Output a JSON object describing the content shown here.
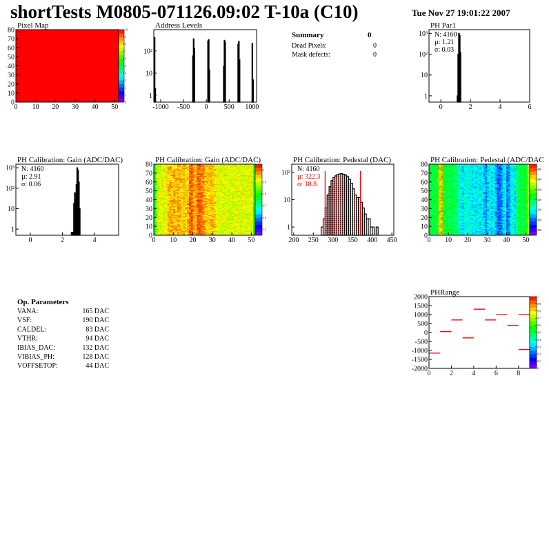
{
  "header": {
    "title": "shortTests M0805-071126.09:02 T-10a (C10)",
    "date": "Tue Nov 27 19:01:22 2007"
  },
  "summary": {
    "title": "Summary",
    "value": "0",
    "rows": [
      {
        "label": "Dead Pixels:",
        "value": "0"
      },
      {
        "label": "Mask defects:",
        "value": "0"
      }
    ]
  },
  "op_parameters": {
    "title": "Op. Parameters",
    "rows": [
      {
        "label": "VANA:",
        "value": "165 DAC"
      },
      {
        "label": "VSF:",
        "value": "190 DAC"
      },
      {
        "label": "CALDEL:",
        "value": "83 DAC"
      },
      {
        "label": "VTHR:",
        "value": "94 DAC"
      },
      {
        "label": "IBIAS_DAC:",
        "value": "132 DAC"
      },
      {
        "label": "VIBIAS_PH:",
        "value": "128 DAC"
      },
      {
        "label": "VOFFSETOP:",
        "value": "44 DAC"
      }
    ]
  },
  "colors": {
    "hist_line": "#000000",
    "fit_line": "#ff0000",
    "stat_red": "#ff0000"
  },
  "chart_data": [
    {
      "id": "pixelmap",
      "type": "heatmap",
      "title": "Pixel Map",
      "xlim": [
        0,
        52
      ],
      "ylim": [
        0,
        80
      ],
      "zlim": [
        0,
        10
      ],
      "xticks": [
        0,
        10,
        20,
        30,
        40,
        50
      ],
      "yticks": [
        0,
        10,
        20,
        30,
        40,
        50,
        60,
        70,
        80
      ],
      "zticks": [
        0,
        1,
        2,
        3,
        4,
        5,
        6,
        7,
        8,
        9,
        10
      ],
      "uniform_value": 10
    },
    {
      "id": "address",
      "type": "bar",
      "title": "Address Levels",
      "log_y": true,
      "xlim": [
        -1150,
        1100
      ],
      "ylim": [
        0.5,
        900
      ],
      "xticks": [
        -1000,
        -500,
        0,
        500,
        1000
      ],
      "yticks": [
        {
          "v": 1,
          "l": "1"
        },
        {
          "v": 10,
          "l": "10"
        },
        {
          "v": 100,
          "l": "10²"
        }
      ],
      "bin_width": 15,
      "bins": [
        [
          -1140,
          400
        ],
        [
          -1125,
          2
        ],
        [
          -300,
          60
        ],
        [
          -285,
          350
        ],
        [
          -270,
          130
        ],
        [
          30,
          280
        ],
        [
          45,
          320
        ],
        [
          60,
          14
        ],
        [
          375,
          20
        ],
        [
          390,
          300
        ],
        [
          405,
          250
        ],
        [
          690,
          200
        ],
        [
          705,
          270
        ],
        [
          720,
          40
        ],
        [
          1000,
          220
        ],
        [
          1015,
          5
        ]
      ]
    },
    {
      "id": "phpar1",
      "type": "bar",
      "title": "PH Par1",
      "log_y": true,
      "xlim": [
        -0.8,
        6
      ],
      "ylim": [
        0.5,
        1500
      ],
      "xticks": [
        0,
        2,
        4,
        6
      ],
      "yticks": [
        {
          "v": 1,
          "l": "1"
        },
        {
          "v": 10,
          "l": "10"
        },
        {
          "v": 100,
          "l": "10²"
        },
        {
          "v": 1000,
          "l": "10³"
        }
      ],
      "bin_width": 0.05,
      "bins": [
        [
          1.1,
          1
        ],
        [
          1.15,
          100
        ],
        [
          1.2,
          1000
        ],
        [
          1.25,
          800
        ],
        [
          1.3,
          120
        ]
      ],
      "stats": {
        "n": "N: 4160",
        "mean": "µ: 1.21",
        "sigma": "σ: 0.03"
      }
    },
    {
      "id": "gainhist",
      "type": "bar",
      "title": "PH Calibration: Gain (ADC/DAC)",
      "log_y": true,
      "xlim": [
        -0.9,
        5.5
      ],
      "ylim": [
        0.5,
        1500
      ],
      "xticks": [
        0,
        2,
        4
      ],
      "yticks": [
        {
          "v": 1,
          "l": "1"
        },
        {
          "v": 10,
          "l": "10"
        },
        {
          "v": 100,
          "l": "10²"
        },
        {
          "v": 1000,
          "l": "10³"
        }
      ],
      "bin_width": 0.05,
      "bins": [
        [
          2.55,
          0.7
        ],
        [
          2.65,
          0.7
        ],
        [
          2.7,
          18
        ],
        [
          2.75,
          60
        ],
        [
          2.8,
          30
        ],
        [
          2.85,
          150
        ],
        [
          2.9,
          1000
        ],
        [
          2.95,
          750
        ],
        [
          3.0,
          200
        ],
        [
          3.05,
          10
        ]
      ],
      "stats": {
        "n": "N: 4160",
        "mean": "µ: 2.91",
        "sigma": "σ: 0.06"
      }
    },
    {
      "id": "gainmap",
      "type": "heatmap",
      "title": "PH Calibration: Gain (ADC/DAC)",
      "xlim": [
        0,
        52
      ],
      "ylim": [
        0,
        80
      ],
      "zlim": [
        2.45,
        3.05
      ],
      "xticks": [
        0,
        10,
        20,
        30,
        40,
        50
      ],
      "yticks": [
        0,
        10,
        20,
        30,
        40,
        50,
        60,
        70,
        80
      ],
      "zticks": [
        2.5,
        2.6,
        2.7,
        2.8,
        2.9,
        3
      ],
      "column_means": [
        2.75,
        2.86,
        2.9,
        2.9,
        2.91,
        2.9,
        2.92,
        2.95,
        2.96,
        2.95,
        2.96,
        2.95,
        2.96,
        2.95,
        2.94,
        2.95,
        2.94,
        2.95,
        3.0,
        3.0,
        2.96,
        2.95,
        3.0,
        3.0,
        2.99,
        2.98,
        2.95,
        2.95,
        2.94,
        2.95,
        2.95,
        2.94,
        2.9,
        2.9,
        2.91,
        2.9,
        2.9,
        2.91,
        2.9,
        2.9,
        2.9,
        2.9,
        2.91,
        2.9,
        2.9,
        2.91,
        2.9,
        2.9,
        2.91,
        2.9,
        2.9,
        2.8
      ]
    },
    {
      "id": "pedhist",
      "type": "bar",
      "title": "PH Calibration: Pedestal (DAC)",
      "log_y": true,
      "xlim": [
        195,
        455
      ],
      "ylim": [
        0.5,
        200
      ],
      "xticks": [
        200,
        250,
        300,
        350,
        400,
        450
      ],
      "yticks": [
        {
          "v": 1,
          "l": "1"
        },
        {
          "v": 10,
          "l": "10"
        },
        {
          "v": 100,
          "l": "10²"
        }
      ],
      "bin_width": 5,
      "bins": [
        [
          270,
          1
        ],
        [
          275,
          2
        ],
        [
          280,
          5
        ],
        [
          285,
          15
        ],
        [
          290,
          30
        ],
        [
          295,
          50
        ],
        [
          300,
          65
        ],
        [
          305,
          75
        ],
        [
          310,
          85
        ],
        [
          315,
          88
        ],
        [
          320,
          90
        ],
        [
          325,
          85
        ],
        [
          330,
          80
        ],
        [
          335,
          70
        ],
        [
          340,
          55
        ],
        [
          345,
          40
        ],
        [
          350,
          25
        ],
        [
          355,
          15
        ],
        [
          360,
          12
        ],
        [
          365,
          12
        ],
        [
          370,
          8
        ],
        [
          375,
          5
        ],
        [
          380,
          3
        ],
        [
          385,
          2
        ],
        [
          390,
          2
        ],
        [
          395,
          1
        ],
        [
          400,
          1
        ],
        [
          410,
          1
        ]
      ],
      "fit_range": [
        280,
        370
      ],
      "stats": {
        "n": "N: 4160",
        "mean": "µ: 322.3",
        "sigma": "σ: 18.8"
      }
    },
    {
      "id": "pedmap",
      "type": "heatmap",
      "title": "PH Calibration: Pedestal (ADC/DAC",
      "xlim": [
        0,
        52
      ],
      "ylim": [
        0,
        80
      ],
      "zlim": [
        270,
        410
      ],
      "xticks": [
        0,
        10,
        20,
        30,
        40,
        50
      ],
      "yticks": [
        0,
        10,
        20,
        30,
        40,
        50,
        60,
        70,
        80
      ],
      "zticks": [
        280,
        300,
        320,
        340,
        360,
        380,
        400
      ],
      "column_means": [
        345,
        340,
        340,
        345,
        350,
        385,
        390,
        350,
        345,
        340,
        340,
        345,
        340,
        335,
        335,
        330,
        320,
        315,
        320,
        325,
        320,
        320,
        315,
        320,
        315,
        320,
        315,
        320,
        310,
        305,
        315,
        320,
        315,
        320,
        310,
        300,
        300,
        305,
        315,
        320,
        300,
        305,
        320,
        320,
        315,
        335,
        340,
        345,
        340,
        345,
        350,
        370
      ]
    },
    {
      "id": "phrange",
      "type": "segments",
      "title": "PHRange",
      "xlim": [
        0,
        9
      ],
      "ylim": [
        -2000,
        2000
      ],
      "zlim": [
        0,
        1
      ],
      "xticks": [
        0,
        2,
        4,
        6,
        8
      ],
      "yticks": [
        -2000,
        -1500,
        -1000,
        -500,
        0,
        500,
        1000,
        1500,
        2000
      ],
      "zticks": [
        0,
        0.1,
        0.2,
        0.3,
        0.4,
        0.5,
        0.6,
        0.7,
        0.8,
        0.9,
        1
      ],
      "segments": [
        [
          0,
          -1150
        ],
        [
          1,
          50
        ],
        [
          2,
          700
        ],
        [
          3,
          -300
        ],
        [
          4,
          1300
        ],
        [
          5,
          700
        ],
        [
          6,
          1000
        ],
        [
          7,
          400
        ],
        [
          8,
          1000
        ],
        [
          8,
          -950
        ]
      ]
    }
  ]
}
